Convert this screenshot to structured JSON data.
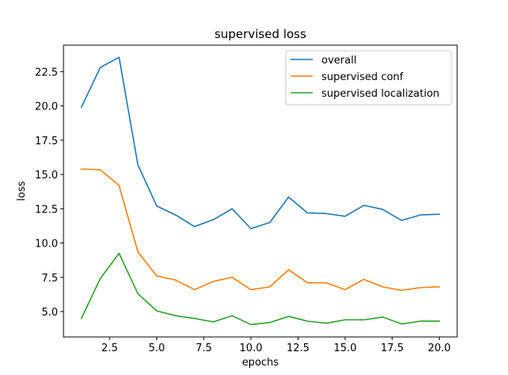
{
  "chart_data": {
    "type": "line",
    "title": "supervised loss",
    "xlabel": "epochs",
    "ylabel": "loss",
    "xlim": [
      0.05,
      20.95
    ],
    "ylim": [
      3.15,
      24.43
    ],
    "xticks": [
      2.5,
      5.0,
      7.5,
      10.0,
      12.5,
      15.0,
      17.5,
      20.0
    ],
    "xtick_labels": [
      "2.5",
      "5.0",
      "7.5",
      "10.0",
      "12.5",
      "15.0",
      "17.5",
      "20.0"
    ],
    "yticks": [
      5.0,
      7.5,
      10.0,
      12.5,
      15.0,
      17.5,
      20.0,
      22.5
    ],
    "ytick_labels": [
      "5.0",
      "7.5",
      "10.0",
      "12.5",
      "15.0",
      "17.5",
      "20.0",
      "22.5"
    ],
    "grid": false,
    "legend_position": "top-right",
    "x": [
      1,
      2,
      3,
      4,
      5,
      6,
      7,
      8,
      9,
      10,
      11,
      12,
      13,
      14,
      15,
      16,
      17,
      18,
      19,
      20
    ],
    "series": [
      {
        "name": "overall",
        "color": "#1f77b4",
        "values": [
          19.9,
          22.8,
          23.55,
          15.7,
          12.7,
          12.05,
          11.2,
          11.7,
          12.5,
          11.05,
          11.5,
          13.35,
          12.2,
          12.15,
          11.95,
          12.75,
          12.45,
          11.65,
          12.05,
          12.1
        ]
      },
      {
        "name": "supervised conf",
        "color": "#ff7f0e",
        "values": [
          15.4,
          15.35,
          14.2,
          9.35,
          7.6,
          7.3,
          6.6,
          7.2,
          7.5,
          6.6,
          6.8,
          8.05,
          7.1,
          7.1,
          6.6,
          7.35,
          6.8,
          6.55,
          6.75,
          6.8
        ]
      },
      {
        "name": "supervised localization",
        "color": "#2ca02c",
        "values": [
          4.5,
          7.4,
          9.25,
          6.3,
          5.05,
          4.7,
          4.5,
          4.25,
          4.7,
          4.05,
          4.2,
          4.65,
          4.3,
          4.15,
          4.4,
          4.4,
          4.6,
          4.1,
          4.3,
          4.3
        ]
      }
    ]
  }
}
